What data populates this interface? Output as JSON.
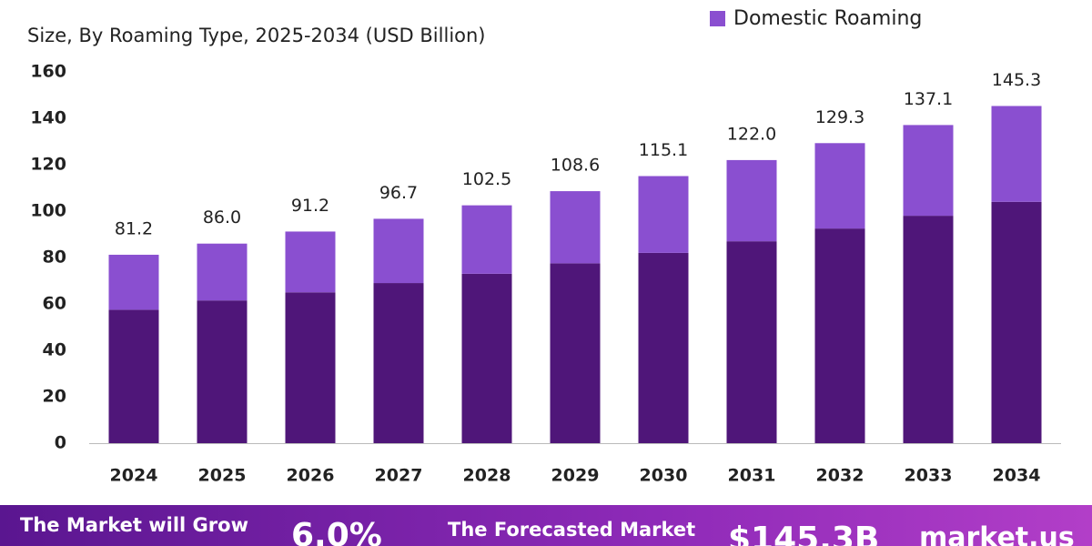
{
  "chart_data": {
    "type": "stacked-bar",
    "subtitle": "Size, By Roaming Type, 2025-2034 (USD Billion)",
    "categories": [
      "2024",
      "2025",
      "2026",
      "2027",
      "2028",
      "2029",
      "2030",
      "2031",
      "2032",
      "2033",
      "2034"
    ],
    "series": [
      {
        "color": "#4f1679",
        "values": [
          57.5,
          61.5,
          65,
          69,
          73,
          77.5,
          82,
          87,
          92.5,
          98,
          104
        ]
      },
      {
        "name": "Domestic Roaming",
        "color": "#8a4fd0",
        "values": [
          23.7,
          24.5,
          26.2,
          27.7,
          29.5,
          31.1,
          33.1,
          35.0,
          36.8,
          39.1,
          41.3
        ]
      }
    ],
    "totals": [
      81.2,
      86,
      91.2,
      96.7,
      102.5,
      108.6,
      115.1,
      122,
      129.3,
      137.1,
      145.3
    ],
    "total_labels": [
      "81.2",
      "86.0",
      "91.2",
      "96.7",
      "102.5",
      "108.6",
      "115.1",
      "122.0",
      "129.3",
      "137.1",
      "145.3"
    ],
    "ylim": [
      0,
      160
    ],
    "yticks": [
      0,
      20,
      40,
      60,
      80,
      100,
      120,
      140,
      160
    ],
    "grid": false
  },
  "banner": {
    "growth_text": "The Market will Grow",
    "cagr": "6.0%",
    "forecast_text": "The Forecasted Market",
    "forecast_value": "$145.3B",
    "brand": "market.us"
  }
}
